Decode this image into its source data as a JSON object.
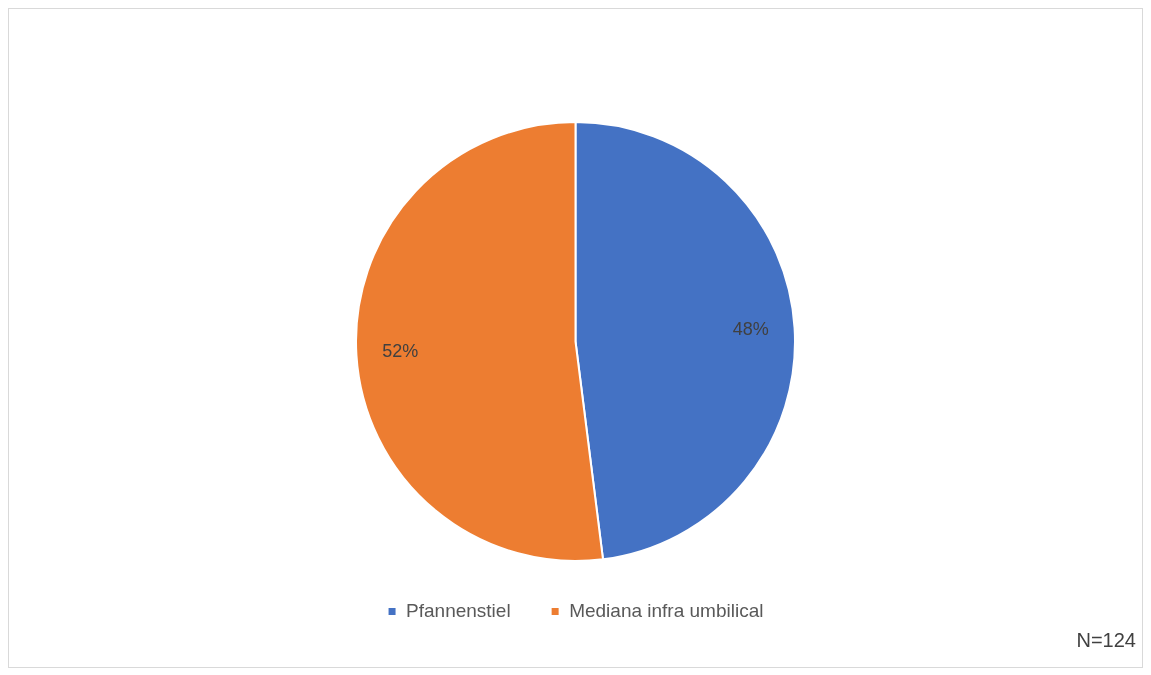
{
  "chart_data": {
    "type": "pie",
    "categories": [
      "Pfannenstiel",
      "Mediana infra umbilical"
    ],
    "values": [
      48,
      52
    ],
    "value_labels": [
      "48%",
      "52%"
    ],
    "colors": [
      "#4472c4",
      "#ed7d31"
    ],
    "legend": "bottom",
    "annotations": [
      "N=124"
    ]
  }
}
